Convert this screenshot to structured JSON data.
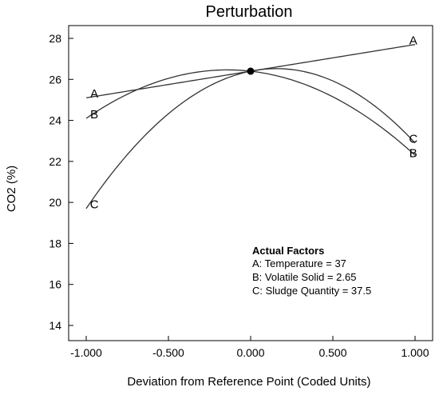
{
  "chart_data": {
    "type": "line",
    "title": "Perturbation",
    "xlabel": "Deviation from Reference Point (Coded Units)",
    "ylabel": "CO2 (%)",
    "xlim": [
      -1.0,
      1.0
    ],
    "ylim": [
      13,
      29
    ],
    "x_ticks": [
      -1.0,
      -0.5,
      0.0,
      0.5,
      1.0
    ],
    "x_tick_labels": [
      "-1.000",
      "-0.500",
      "0.000",
      "0.500",
      "1.000"
    ],
    "y_ticks": [
      14,
      16,
      18,
      20,
      22,
      24,
      26,
      28
    ],
    "y_tick_labels": [
      "14",
      "16",
      "18",
      "20",
      "22",
      "24",
      "26",
      "28"
    ],
    "grid": false,
    "reference_point": {
      "x": 0.0,
      "y": 26.4
    },
    "series": [
      {
        "name": "A",
        "x": [
          -1.0,
          0.0,
          1.0
        ],
        "values": [
          25.1,
          26.4,
          27.7
        ]
      },
      {
        "name": "B",
        "x": [
          -1.0,
          0.0,
          1.0
        ],
        "values": [
          24.1,
          26.4,
          22.3
        ]
      },
      {
        "name": "C",
        "x": [
          -1.0,
          0.0,
          1.0
        ],
        "values": [
          19.7,
          26.4,
          22.9
        ]
      }
    ],
    "curve_labels": [
      {
        "text": "A",
        "x": -0.98,
        "y": 25.3
      },
      {
        "text": "B",
        "x": -0.98,
        "y": 24.3
      },
      {
        "text": "C",
        "x": -0.98,
        "y": 19.9
      },
      {
        "text": "A",
        "x": 0.96,
        "y": 27.9
      },
      {
        "text": "C",
        "x": 0.96,
        "y": 23.1
      },
      {
        "text": "B",
        "x": 0.96,
        "y": 22.4
      }
    ],
    "annotation": {
      "title": "Actual Factors",
      "items": [
        "A: Temperature = 37",
        "B: Volatile Solid = 2.65",
        "C: Sludge Quantity = 37.5"
      ]
    }
  }
}
